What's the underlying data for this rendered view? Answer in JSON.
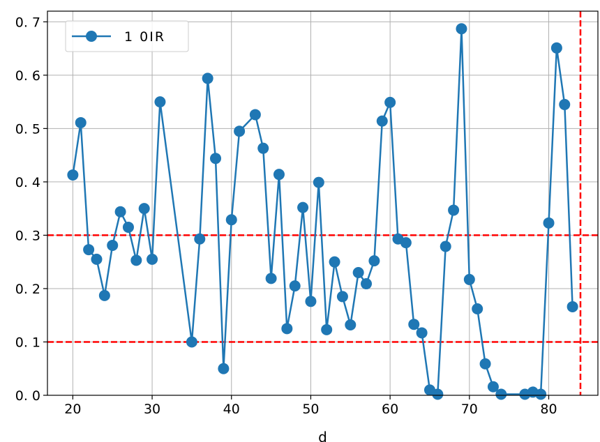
{
  "chart_data": {
    "type": "line",
    "xlabel": "d",
    "ylabel": "",
    "xlim": [
      16.8,
      86.2
    ],
    "ylim": [
      0,
      0.72
    ],
    "xticks": [
      20,
      30,
      40,
      50,
      60,
      70,
      80
    ],
    "yticks": [
      0.0,
      0.1,
      0.2,
      0.3,
      0.4,
      0.5,
      0.6,
      0.7
    ],
    "ytick_labels": [
      "0. 0",
      "0. 1",
      "0. 2",
      "0. 3",
      "0. 4",
      "0. 5",
      "0. 6",
      "0. 7"
    ],
    "grid": true,
    "legend_position": "top-left",
    "series": [
      {
        "name": "1 0IR",
        "color": "#1f77b4",
        "marker": "circle",
        "x": [
          20,
          21,
          22,
          23,
          24,
          25,
          26,
          27,
          28,
          29,
          30,
          31,
          35,
          36,
          37,
          38,
          39,
          40,
          41,
          43,
          44,
          45,
          46,
          47,
          48,
          49,
          50,
          51,
          52,
          53,
          54,
          55,
          56,
          57,
          58,
          59,
          60,
          61,
          62,
          63,
          64,
          65,
          66,
          67,
          68,
          69,
          70,
          71,
          72,
          73,
          74,
          77,
          78,
          79,
          80,
          81,
          82,
          83
        ],
        "y": [
          0.413,
          0.511,
          0.273,
          0.255,
          0.187,
          0.281,
          0.344,
          0.315,
          0.253,
          0.35,
          0.255,
          0.55,
          0.1,
          0.293,
          0.594,
          0.444,
          0.05,
          0.329,
          0.495,
          0.526,
          0.463,
          0.219,
          0.414,
          0.125,
          0.205,
          0.352,
          0.176,
          0.399,
          0.123,
          0.25,
          0.185,
          0.132,
          0.23,
          0.209,
          0.252,
          0.514,
          0.549,
          0.293,
          0.286,
          0.133,
          0.117,
          0.01,
          0.002,
          0.279,
          0.347,
          0.687,
          0.217,
          0.162,
          0.059,
          0.016,
          0.002,
          0.002,
          0.006,
          0.002,
          0.323,
          0.651,
          0.545,
          0.166
        ]
      }
    ],
    "reference_lines": {
      "color": "#ff0000",
      "style": "dashed",
      "horizontal": [
        0.1,
        0.3
      ],
      "vertical": [
        84
      ]
    }
  }
}
